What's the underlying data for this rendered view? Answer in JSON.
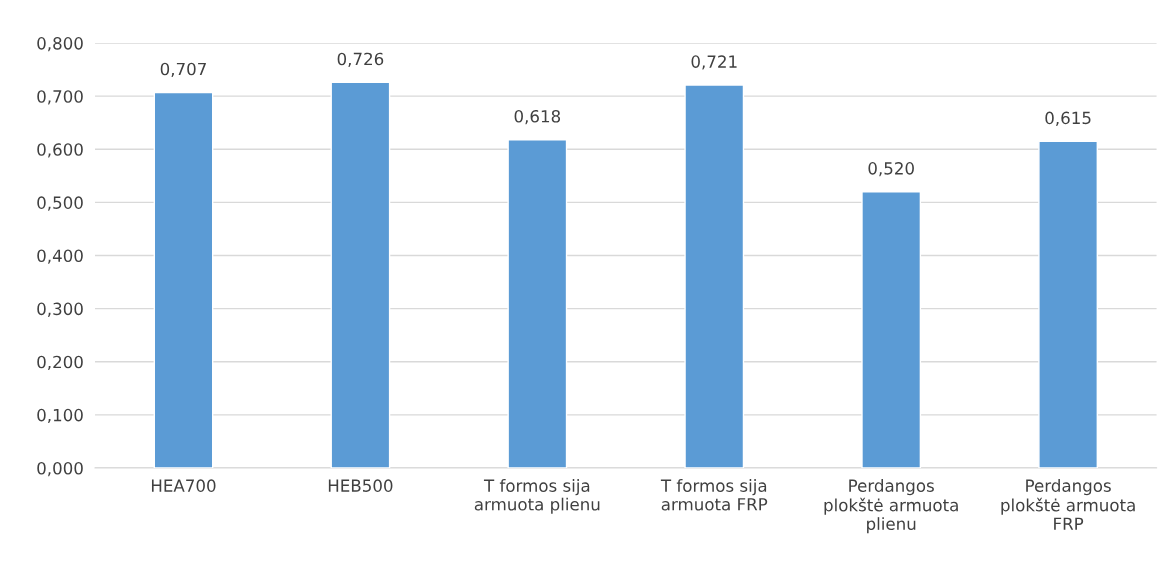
{
  "chart_data": {
    "type": "bar",
    "categories": [
      "HEA700",
      "HEB500",
      "T formos sija\narmuota plienu",
      "T formos sija\narmuota FRP",
      "Perdangos\nplokštė armuota\nplienu",
      "Perdangos\nplokštė armuota\nFRP"
    ],
    "values": [
      0.707,
      0.726,
      0.618,
      0.721,
      0.52,
      0.615
    ],
    "value_labels": [
      "0,707",
      "0,726",
      "0,618",
      "0,721",
      "0,520",
      "0,615"
    ],
    "color": "#5b9bd5",
    "ylim": [
      0,
      0.8
    ],
    "yticks": [
      {
        "value": 0,
        "label": "0,000"
      },
      {
        "value": 0.1,
        "label": "0,100"
      },
      {
        "value": 0.2,
        "label": "0,200"
      },
      {
        "value": 0.3,
        "label": "0,300"
      },
      {
        "value": 0.4,
        "label": "0,400"
      },
      {
        "value": 0.5,
        "label": "0,500"
      },
      {
        "value": 0.6,
        "label": "0,600"
      },
      {
        "value": 0.7,
        "label": "0,700"
      },
      {
        "value": 0.8,
        "label": "0,800"
      }
    ],
    "grid": "y"
  }
}
